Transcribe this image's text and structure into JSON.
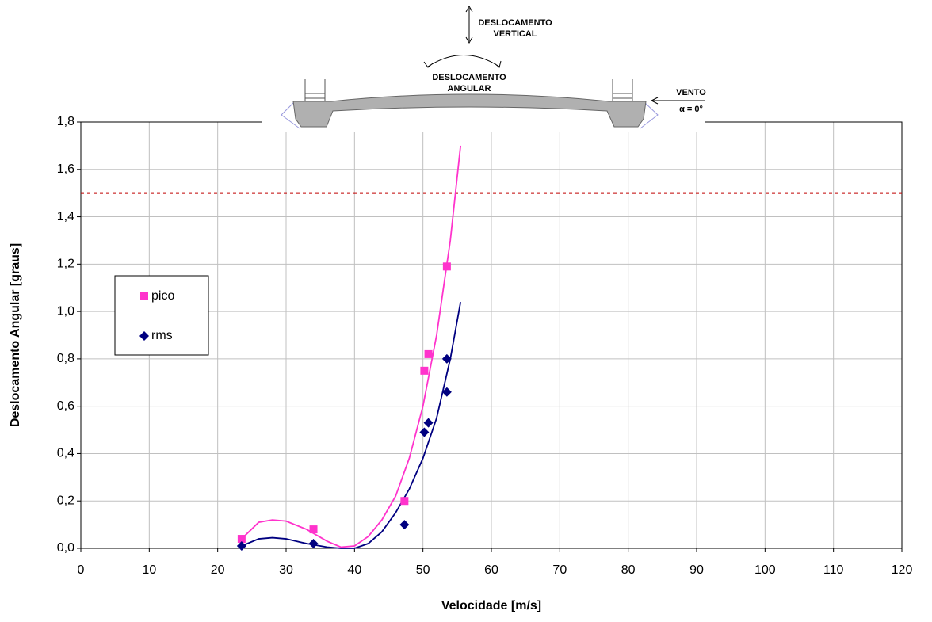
{
  "chart_data": {
    "type": "scatter",
    "xlabel": "Velocidade [m/s]",
    "ylabel": "Deslocamento Angular [graus]",
    "xlim": [
      0,
      120
    ],
    "xticks": [
      0,
      10,
      20,
      30,
      40,
      50,
      60,
      70,
      80,
      90,
      100,
      110,
      120
    ],
    "ylim": [
      0,
      1.8
    ],
    "yticks": [
      {
        "value": 0,
        "label": "0,0"
      },
      {
        "value": 0.2,
        "label": "0,2"
      },
      {
        "value": 0.4,
        "label": "0,4"
      },
      {
        "value": 0.6,
        "label": "0,6"
      },
      {
        "value": 0.8,
        "label": "0,8"
      },
      {
        "value": 1.0,
        "label": "1,0"
      },
      {
        "value": 1.2,
        "label": "1,2"
      },
      {
        "value": 1.4,
        "label": "1,4"
      },
      {
        "value": 1.6,
        "label": "1,6"
      },
      {
        "value": 1.8,
        "label": "1,8"
      }
    ],
    "grid": true,
    "legend": "left",
    "series": [
      {
        "name": "pico",
        "color": "#ff33cc",
        "marker": "square",
        "x": [
          23.5,
          34,
          47.3,
          50.2,
          50.8,
          53.5
        ],
        "values": [
          0.04,
          0.08,
          0.2,
          0.75,
          0.82,
          1.19
        ]
      },
      {
        "name": "rms",
        "color": "#000080",
        "marker": "diamond",
        "x": [
          23.5,
          34,
          47.3,
          50.2,
          50.8,
          53.5,
          53.5
        ],
        "values": [
          0.01,
          0.02,
          0.1,
          0.49,
          0.53,
          0.8,
          0.66
        ]
      }
    ],
    "trendlines": [
      {
        "color": "#ff33cc",
        "x": [
          23.5,
          26,
          28,
          30,
          33,
          36,
          38,
          40,
          42,
          44,
          46,
          48,
          50,
          52,
          54,
          55.5
        ],
        "values": [
          0.04,
          0.11,
          0.12,
          0.115,
          0.08,
          0.03,
          0.005,
          0.01,
          0.05,
          0.12,
          0.22,
          0.38,
          0.6,
          0.9,
          1.3,
          1.7
        ]
      },
      {
        "color": "#000080",
        "x": [
          23.5,
          26,
          28,
          30,
          33,
          36,
          38,
          40,
          42,
          44,
          46,
          48,
          50,
          52,
          54,
          55.5
        ],
        "values": [
          0.01,
          0.04,
          0.045,
          0.04,
          0.02,
          0.005,
          0,
          0,
          0.02,
          0.07,
          0.15,
          0.25,
          0.38,
          0.55,
          0.8,
          1.04
        ]
      }
    ],
    "reference_line": {
      "value": 1.5,
      "color": "#c00000",
      "dashed": true
    }
  },
  "diagram": {
    "vertical": [
      "DESLOCAMENTO",
      "VERTICAL"
    ],
    "angular": [
      "DESLOCAMENTO",
      "ANGULAR"
    ],
    "wind": [
      "VENTO",
      "α = 0°"
    ]
  }
}
